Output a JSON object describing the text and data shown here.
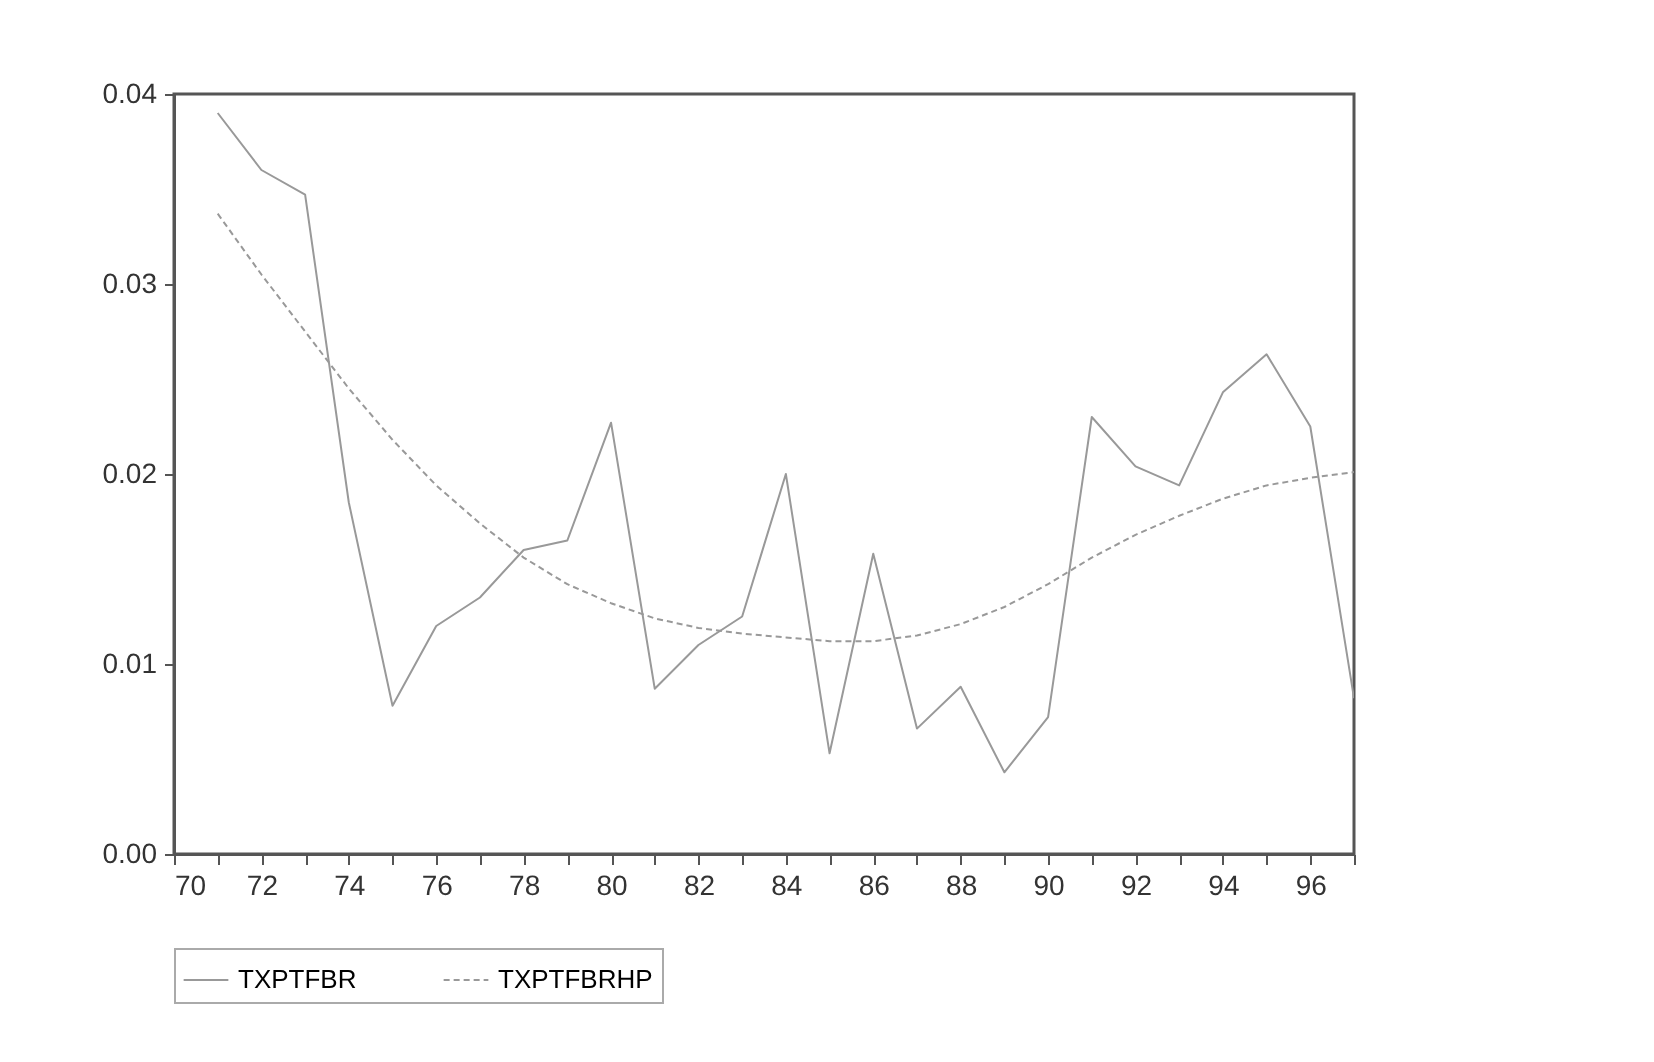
{
  "chart_data": {
    "type": "line",
    "x": [
      71,
      72,
      73,
      74,
      75,
      76,
      77,
      78,
      79,
      80,
      81,
      82,
      83,
      84,
      85,
      86,
      87,
      88,
      89,
      90,
      91,
      92,
      93,
      94,
      95,
      96,
      97
    ],
    "series": [
      {
        "name": "TXPTFBR",
        "color": "#999999",
        "line_style": "solid",
        "values": [
          0.039,
          0.036,
          0.0347,
          0.0185,
          0.0078,
          0.012,
          0.0135,
          0.016,
          0.0165,
          0.0227,
          0.0087,
          0.011,
          0.0125,
          0.02,
          0.0053,
          0.0158,
          0.0066,
          0.0088,
          0.0043,
          0.0072,
          0.023,
          0.0204,
          0.0194,
          0.0243,
          0.0263,
          0.0225,
          0.0082
        ]
      },
      {
        "name": "TXPTFBRHP",
        "color": "#999999",
        "line_style": "dashed",
        "values": [
          0.0337,
          0.0305,
          0.0275,
          0.0245,
          0.0218,
          0.0194,
          0.0174,
          0.0156,
          0.0142,
          0.0132,
          0.0124,
          0.0119,
          0.0116,
          0.0114,
          0.0112,
          0.0112,
          0.0115,
          0.0121,
          0.013,
          0.0142,
          0.0156,
          0.0168,
          0.0178,
          0.0187,
          0.0194,
          0.0198,
          0.0201
        ]
      }
    ],
    "xlim": [
      70,
      97
    ],
    "xticks": [
      70,
      {
        "value": 71,
        "label": null
      },
      72,
      {
        "value": 73,
        "label": null
      },
      74,
      {
        "value": 75,
        "label": null
      },
      76,
      {
        "value": 77,
        "label": null
      },
      78,
      {
        "value": 79,
        "label": null
      },
      80,
      {
        "value": 81,
        "label": null
      },
      82,
      {
        "value": 83,
        "label": null
      },
      84,
      {
        "value": 85,
        "label": null
      },
      86,
      {
        "value": 87,
        "label": null
      },
      88,
      {
        "value": 89,
        "label": null
      },
      90,
      {
        "value": 91,
        "label": null
      },
      92,
      {
        "value": 93,
        "label": null
      },
      94,
      {
        "value": 95,
        "label": null
      },
      96,
      {
        "value": 97,
        "label": null
      }
    ],
    "ylim": [
      0,
      0.04
    ],
    "yticks": [
      {
        "value": 0,
        "label": "0.00"
      },
      {
        "value": 0.01,
        "label": "0.01"
      },
      {
        "value": 0.02,
        "label": "0.02"
      },
      {
        "value": 0.03,
        "label": "0.03"
      },
      {
        "value": 0.04,
        "label": "0.04"
      }
    ],
    "grid": false,
    "legend": "bottom",
    "marker": "none"
  }
}
